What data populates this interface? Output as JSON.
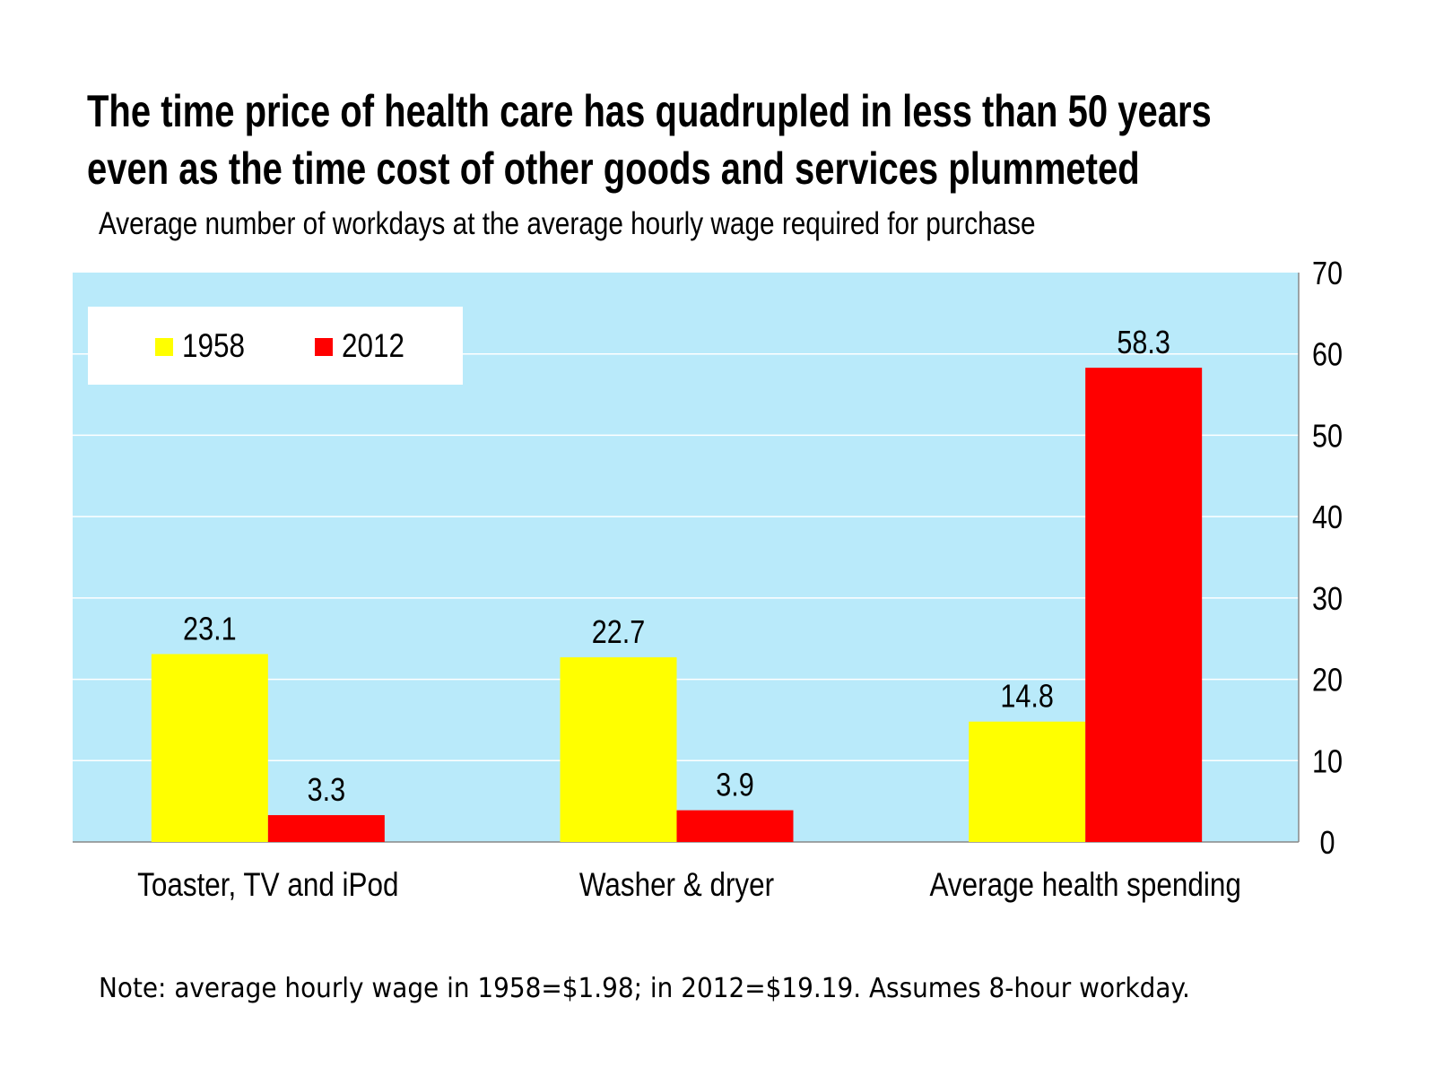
{
  "chart_data": {
    "type": "bar",
    "title": "The time price of health care has quadrupled in less than 50 years even as the time cost of other goods and services plummeted",
    "title_lines": [
      "The time price of health care has quadrupled in less than 50 years",
      "even as the time cost of other goods and services plummeted"
    ],
    "subtitle": "Average number of workdays at the average hourly wage required for purchase",
    "categories": [
      "Toaster, TV and iPod",
      "Washer & dryer",
      "Average health spending"
    ],
    "series": [
      {
        "name": "1958",
        "values": [
          23.1,
          22.7,
          14.8
        ],
        "color": "#FFFF00"
      },
      {
        "name": "2012",
        "values": [
          3.3,
          3.9,
          58.3
        ],
        "color": "#FF0000"
      }
    ],
    "data_labels": [
      [
        "23.1",
        "22.7",
        "14.8"
      ],
      [
        "3.3",
        "3.9",
        "58.3"
      ]
    ],
    "ylim": [
      0,
      70
    ],
    "yticks": [
      "0",
      "10",
      "20",
      "30",
      "40",
      "50",
      "60",
      "70"
    ],
    "y_axis_side": "right",
    "grid": true,
    "legend_placement": "top-left",
    "plot_background": "#B9EAFA",
    "note": "Note: average hourly wage in 1958=$1.98; in 2012=$19.19. Assumes 8-hour workday."
  }
}
